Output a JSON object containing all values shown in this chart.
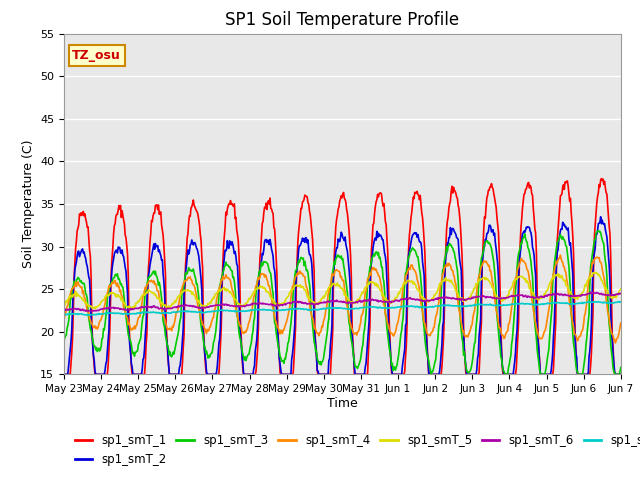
{
  "title": "SP1 Soil Temperature Profile",
  "xlabel": "Time",
  "ylabel": "Soil Temperature (C)",
  "ylim": [
    15,
    55
  ],
  "annotation_text": "TZ_osu",
  "annotation_color": "#cc0000",
  "annotation_bg": "#ffffcc",
  "annotation_border": "#cc8800",
  "series_colors": {
    "sp1_smT_1": "#ff0000",
    "sp1_smT_2": "#0000dd",
    "sp1_smT_3": "#00cc00",
    "sp1_smT_4": "#ff8800",
    "sp1_smT_5": "#dddd00",
    "sp1_smT_6": "#aa00aa",
    "sp1_smT_7": "#00cccc"
  },
  "x_tick_labels": [
    "May 23",
    "May 24",
    "May 25",
    "May 26",
    "May 27",
    "May 28",
    "May 29",
    "May 30",
    "May 31",
    "Jun 1",
    "Jun 2",
    "Jun 3",
    "Jun 4",
    "Jun 5",
    "Jun 6",
    "Jun 7"
  ],
  "background_color": "#e8e8e8",
  "grid_color": "#ffffff",
  "fig_bg": "#ffffff",
  "n_days": 15
}
